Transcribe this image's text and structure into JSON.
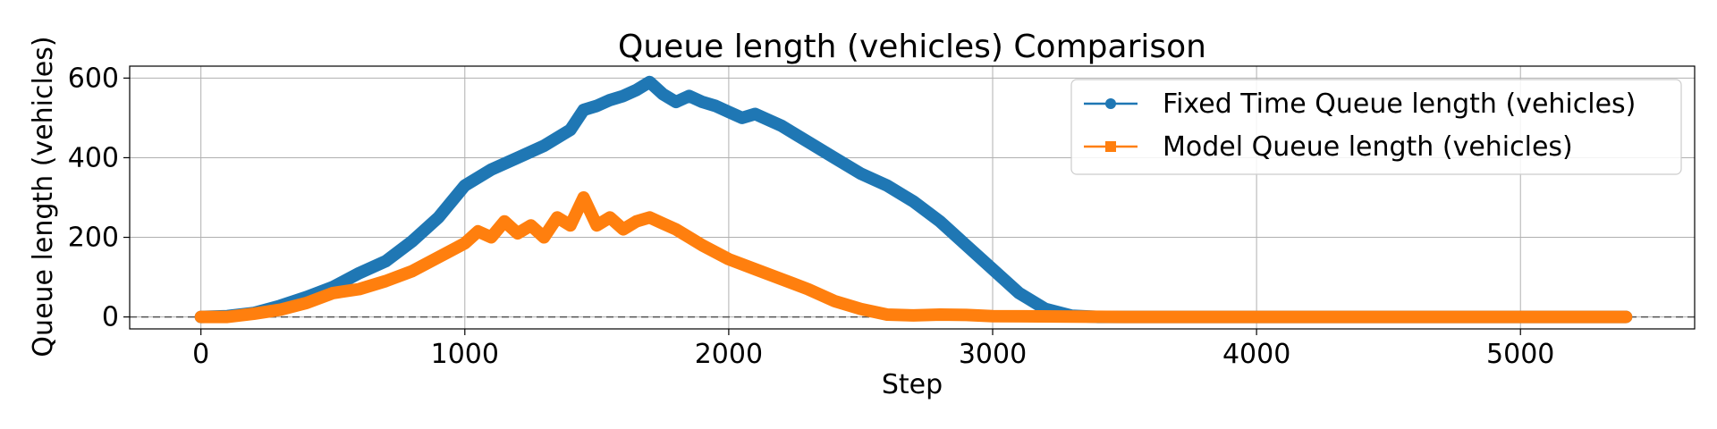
{
  "chart_data": {
    "type": "line",
    "title": "Queue length (vehicles) Comparison",
    "xlabel": "Step",
    "ylabel": "Queue length (vehicles)",
    "xlim": [
      -270,
      5660
    ],
    "ylim": [
      -30,
      630
    ],
    "x_ticks": [
      0,
      1000,
      2000,
      3000,
      4000,
      5000
    ],
    "y_ticks": [
      0,
      200,
      400,
      600
    ],
    "grid": true,
    "legend_position": "top-right",
    "reference_line": {
      "y": 0,
      "style": "dashed",
      "color": "#555555"
    },
    "series": [
      {
        "name": "Fixed Time Queue length (vehicles)",
        "color": "#1f77b4",
        "marker": "circle",
        "x": [
          0,
          100,
          200,
          300,
          400,
          500,
          600,
          700,
          800,
          900,
          1000,
          1100,
          1200,
          1300,
          1400,
          1450,
          1500,
          1550,
          1600,
          1650,
          1700,
          1750,
          1800,
          1850,
          1900,
          1950,
          2000,
          2050,
          2100,
          2200,
          2300,
          2400,
          2500,
          2600,
          2700,
          2800,
          2900,
          3000,
          3100,
          3200,
          3300,
          3400,
          3600,
          4000,
          4500,
          5000,
          5400
        ],
        "y": [
          0,
          2,
          10,
          28,
          50,
          75,
          110,
          140,
          190,
          250,
          330,
          370,
          400,
          430,
          470,
          520,
          530,
          545,
          555,
          570,
          590,
          560,
          540,
          555,
          540,
          530,
          515,
          500,
          510,
          480,
          440,
          400,
          360,
          330,
          290,
          240,
          180,
          120,
          60,
          20,
          3,
          0,
          0,
          0,
          0,
          0,
          0
        ]
      },
      {
        "name": "Model Queue length (vehicles)",
        "color": "#ff7f0e",
        "marker": "square",
        "x": [
          0,
          100,
          200,
          300,
          400,
          500,
          600,
          700,
          800,
          900,
          1000,
          1050,
          1100,
          1150,
          1200,
          1250,
          1300,
          1350,
          1400,
          1450,
          1500,
          1550,
          1600,
          1650,
          1700,
          1750,
          1800,
          1850,
          1900,
          2000,
          2100,
          2200,
          2300,
          2400,
          2500,
          2600,
          2700,
          2800,
          2900,
          3000,
          3500,
          4000,
          4500,
          5000,
          5400
        ],
        "y": [
          0,
          0,
          8,
          18,
          35,
          60,
          70,
          90,
          115,
          150,
          185,
          215,
          200,
          240,
          210,
          230,
          200,
          250,
          230,
          300,
          230,
          250,
          220,
          240,
          250,
          235,
          220,
          200,
          180,
          145,
          120,
          95,
          70,
          40,
          20,
          6,
          4,
          6,
          5,
          2,
          0,
          0,
          0,
          0,
          0
        ]
      }
    ]
  }
}
